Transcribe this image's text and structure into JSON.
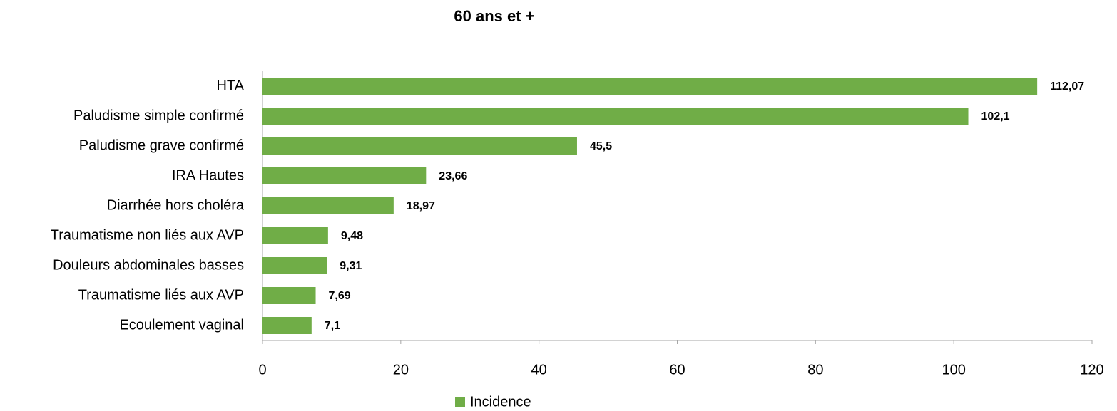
{
  "chart_data": {
    "type": "bar",
    "orientation": "horizontal",
    "title": "60 ans et +",
    "categories": [
      "HTA",
      "Paludisme simple confirmé",
      "Paludisme grave confirmé",
      "IRA Hautes",
      "Diarrhée hors choléra",
      "Traumatisme non liés aux AVP",
      "Douleurs abdominales basses",
      "Traumatisme liés aux AVP",
      "Ecoulement vaginal"
    ],
    "series": [
      {
        "name": "Incidence",
        "color": "#70ad47",
        "values": [
          112.07,
          102.1,
          45.5,
          23.66,
          18.97,
          9.48,
          9.31,
          7.69,
          7.1
        ],
        "value_labels": [
          "112,07",
          "102,1",
          "45,5",
          "23,66",
          "18,97",
          "9,48",
          "9,31",
          "7,69",
          "7,1"
        ]
      }
    ],
    "xlim": [
      0,
      120
    ],
    "xticks": [
      0,
      20,
      40,
      60,
      80,
      100,
      120
    ],
    "grid": false,
    "legend": "bottom"
  }
}
